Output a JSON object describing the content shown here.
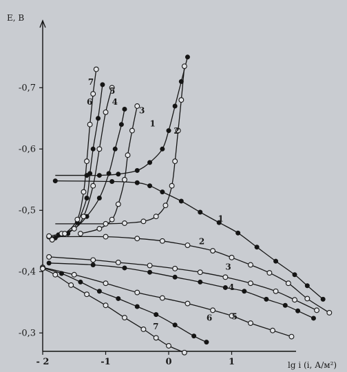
{
  "chart_data": {
    "type": "line",
    "xlabel": "lg i (i, А/м²)",
    "ylabel": "E, B",
    "xlim": [
      -2,
      2.7
    ],
    "ylim": [
      -0.27,
      -0.75
    ],
    "x_ticks": [
      -2,
      -1,
      0,
      1
    ],
    "x_tick_labels": [
      "- 2",
      "-1",
      "0",
      "1"
    ],
    "y_ticks": [
      -0.7,
      -0.6,
      -0.5,
      -0.4,
      -0.3
    ],
    "y_tick_labels": [
      "-0,7",
      "-0,6",
      "-0,5",
      "-0,4",
      "-0,3"
    ],
    "grid": false,
    "legend": "none",
    "series": [
      {
        "label": "1",
        "family": "cathodic",
        "marker": "filled",
        "points": [
          [
            -1.3,
            -0.557
          ],
          [
            -1.1,
            -0.557
          ],
          [
            -0.8,
            -0.559
          ],
          [
            -0.5,
            -0.565
          ],
          [
            -0.3,
            -0.578
          ],
          [
            -0.1,
            -0.6
          ],
          [
            0.0,
            -0.63
          ],
          [
            0.1,
            -0.67
          ],
          [
            0.2,
            -0.71
          ],
          [
            0.3,
            -0.75
          ]
        ]
      },
      {
        "label": "1",
        "family": "anodic",
        "marker": "filled",
        "points": [
          [
            -1.8,
            -0.548
          ],
          [
            -0.9,
            -0.547
          ],
          [
            -0.5,
            -0.545
          ],
          [
            -0.3,
            -0.54
          ],
          [
            -0.1,
            -0.53
          ],
          [
            0.2,
            -0.515
          ],
          [
            0.5,
            -0.497
          ],
          [
            0.8,
            -0.48
          ],
          [
            1.1,
            -0.463
          ],
          [
            1.4,
            -0.44
          ],
          [
            1.7,
            -0.417
          ],
          [
            2.0,
            -0.395
          ],
          [
            2.2,
            -0.377
          ],
          [
            2.45,
            -0.355
          ]
        ]
      },
      {
        "label": "2",
        "family": "cathodic",
        "marker": "open",
        "points": [
          [
            -1.0,
            -0.478
          ],
          [
            -0.7,
            -0.479
          ],
          [
            -0.4,
            -0.482
          ],
          [
            -0.2,
            -0.49
          ],
          [
            -0.05,
            -0.508
          ],
          [
            0.05,
            -0.54
          ],
          [
            0.1,
            -0.58
          ],
          [
            0.15,
            -0.63
          ],
          [
            0.2,
            -0.68
          ],
          [
            0.25,
            -0.735
          ]
        ]
      },
      {
        "label": "2",
        "family": "anodic",
        "marker": "open",
        "points": [
          [
            -1.9,
            -0.457
          ],
          [
            -1.0,
            -0.457
          ],
          [
            -0.5,
            -0.454
          ],
          [
            -0.1,
            -0.45
          ],
          [
            0.3,
            -0.443
          ],
          [
            0.7,
            -0.434
          ],
          [
            1.0,
            -0.423
          ],
          [
            1.3,
            -0.411
          ],
          [
            1.6,
            -0.398
          ],
          [
            1.9,
            -0.381
          ],
          [
            2.2,
            -0.356
          ],
          [
            2.55,
            -0.333
          ]
        ]
      },
      {
        "label": "3",
        "family": "cathodic",
        "marker": "open",
        "points": [
          [
            -1.4,
            -0.462
          ],
          [
            -1.1,
            -0.47
          ],
          [
            -0.9,
            -0.485
          ],
          [
            -0.8,
            -0.51
          ],
          [
            -0.7,
            -0.55
          ],
          [
            -0.65,
            -0.59
          ],
          [
            -0.58,
            -0.63
          ],
          [
            -0.5,
            -0.67
          ]
        ]
      },
      {
        "label": "3",
        "family": "anodic",
        "marker": "open",
        "points": [
          [
            -1.9,
            -0.424
          ],
          [
            -1.2,
            -0.419
          ],
          [
            -0.8,
            -0.415
          ],
          [
            -0.3,
            -0.41
          ],
          [
            0.1,
            -0.405
          ],
          [
            0.5,
            -0.399
          ],
          [
            0.9,
            -0.391
          ],
          [
            1.3,
            -0.381
          ],
          [
            1.7,
            -0.368
          ],
          [
            2.0,
            -0.354
          ],
          [
            2.35,
            -0.337
          ]
        ]
      },
      {
        "label": "4",
        "family": "cathodic",
        "marker": "filled",
        "points": [
          [
            -1.75,
            -0.46
          ],
          [
            -1.5,
            -0.47
          ],
          [
            -1.3,
            -0.49
          ],
          [
            -1.1,
            -0.52
          ],
          [
            -0.95,
            -0.56
          ],
          [
            -0.85,
            -0.6
          ],
          [
            -0.75,
            -0.64
          ],
          [
            -0.7,
            -0.665
          ]
        ]
      },
      {
        "label": "4",
        "family": "anodic",
        "marker": "filled",
        "points": [
          [
            -1.9,
            -0.414
          ],
          [
            -1.2,
            -0.411
          ],
          [
            -0.7,
            -0.406
          ],
          [
            -0.3,
            -0.399
          ],
          [
            0.1,
            -0.391
          ],
          [
            0.5,
            -0.383
          ],
          [
            0.9,
            -0.374
          ],
          [
            1.2,
            -0.368
          ],
          [
            1.55,
            -0.355
          ],
          [
            1.85,
            -0.345
          ],
          [
            2.05,
            -0.336
          ],
          [
            2.3,
            -0.324
          ]
        ]
      },
      {
        "label": "5",
        "family": "cathodic",
        "marker": "open",
        "points": [
          [
            -1.9,
            -0.458
          ],
          [
            -1.7,
            -0.462
          ],
          [
            -1.5,
            -0.47
          ],
          [
            -1.35,
            -0.49
          ],
          [
            -1.2,
            -0.54
          ],
          [
            -1.1,
            -0.6
          ],
          [
            -1.0,
            -0.66
          ],
          [
            -0.9,
            -0.7
          ]
        ]
      },
      {
        "label": "5",
        "family": "anodic",
        "marker": "open",
        "points": [
          [
            -2.0,
            -0.407
          ],
          [
            -1.5,
            -0.395
          ],
          [
            -1.0,
            -0.381
          ],
          [
            -0.5,
            -0.366
          ],
          [
            -0.1,
            -0.357
          ],
          [
            0.3,
            -0.348
          ],
          [
            0.7,
            -0.337
          ],
          [
            1.0,
            -0.328
          ],
          [
            1.3,
            -0.316
          ],
          [
            1.65,
            -0.304
          ],
          [
            1.95,
            -0.294
          ]
        ]
      },
      {
        "label": "6",
        "family": "cathodic",
        "marker": "filled",
        "points": [
          [
            -1.8,
            -0.455
          ],
          [
            -1.6,
            -0.462
          ],
          [
            -1.45,
            -0.48
          ],
          [
            -1.3,
            -0.52
          ],
          [
            -1.25,
            -0.56
          ],
          [
            -1.2,
            -0.6
          ],
          [
            -1.12,
            -0.65
          ],
          [
            -1.05,
            -0.705
          ]
        ]
      },
      {
        "label": "6",
        "family": "anodic",
        "marker": "filled",
        "points": [
          [
            -2.0,
            -0.406
          ],
          [
            -1.7,
            -0.397
          ],
          [
            -1.4,
            -0.383
          ],
          [
            -1.1,
            -0.368
          ],
          [
            -0.8,
            -0.356
          ],
          [
            -0.5,
            -0.343
          ],
          [
            -0.2,
            -0.33
          ],
          [
            0.1,
            -0.313
          ],
          [
            0.4,
            -0.295
          ],
          [
            0.6,
            -0.285
          ]
        ]
      },
      {
        "label": "7",
        "family": "cathodic",
        "marker": "open",
        "points": [
          [
            -1.85,
            -0.452
          ],
          [
            -1.65,
            -0.462
          ],
          [
            -1.45,
            -0.485
          ],
          [
            -1.35,
            -0.53
          ],
          [
            -1.3,
            -0.58
          ],
          [
            -1.25,
            -0.64
          ],
          [
            -1.2,
            -0.69
          ],
          [
            -1.15,
            -0.73
          ]
        ]
      },
      {
        "label": "7",
        "family": "anodic",
        "marker": "open",
        "points": [
          [
            -2.0,
            -0.405
          ],
          [
            -1.8,
            -0.395
          ],
          [
            -1.55,
            -0.378
          ],
          [
            -1.3,
            -0.363
          ],
          [
            -1.0,
            -0.345
          ],
          [
            -0.7,
            -0.325
          ],
          [
            -0.4,
            -0.306
          ],
          [
            -0.2,
            -0.292
          ],
          [
            0.0,
            -0.279
          ],
          [
            0.25,
            -0.268
          ]
        ]
      }
    ],
    "annotations": [
      {
        "text": "7",
        "x": -1.28,
        "y": -0.705
      },
      {
        "text": "5",
        "x": -0.94,
        "y": -0.69
      },
      {
        "text": "6",
        "x": -1.3,
        "y": -0.672
      },
      {
        "text": "4",
        "x": -0.9,
        "y": -0.672
      },
      {
        "text": "3",
        "x": -0.47,
        "y": -0.658
      },
      {
        "text": "1",
        "x": -0.3,
        "y": -0.637
      },
      {
        "text": "2",
        "x": 0.08,
        "y": -0.625
      },
      {
        "text": "1",
        "x": 0.78,
        "y": -0.482
      },
      {
        "text": "2",
        "x": 0.48,
        "y": -0.445
      },
      {
        "text": "3",
        "x": 0.9,
        "y": -0.403
      },
      {
        "text": "4",
        "x": 0.95,
        "y": -0.37
      },
      {
        "text": "5",
        "x": 1.0,
        "y": -0.322
      },
      {
        "text": "6",
        "x": 0.6,
        "y": -0.32
      },
      {
        "text": "7",
        "x": -0.25,
        "y": -0.306
      }
    ]
  }
}
